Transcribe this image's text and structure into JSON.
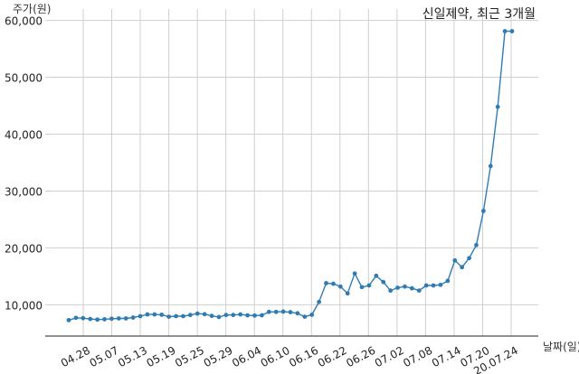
{
  "chart_data": {
    "type": "line",
    "title": "신일제약, 최근 3개월",
    "ylabel": "주가(원)",
    "xlabel": "날짜(일)",
    "ylim": [
      4500,
      62000
    ],
    "yticks": [
      10000,
      20000,
      30000,
      40000,
      50000,
      60000
    ],
    "ytick_labels": [
      "10,000",
      "20,000",
      "30,000",
      "40,000",
      "50,000",
      "60,000"
    ],
    "xtick_labels": [
      "04.28",
      "05.07",
      "05.13",
      "05.19",
      "05.25",
      "05.29",
      "06.04",
      "06.10",
      "06.16",
      "06.22",
      "06.26",
      "07.02",
      "07.08",
      "07.14",
      "07.20",
      "20.07.24"
    ],
    "grid": true,
    "line_color": "#2f7cb5",
    "series": [
      {
        "values": [
          7300,
          7700,
          7650,
          7500,
          7400,
          7450,
          7550,
          7600,
          7600,
          7750,
          8000,
          8300,
          8300,
          8250,
          7900,
          8000,
          8000,
          8200,
          8450,
          8350,
          8050,
          7850,
          8200,
          8200,
          8300,
          8150,
          8100,
          8150,
          8750,
          8750,
          8800,
          8700,
          8500,
          7900,
          8250,
          10500,
          13800,
          13700,
          13200,
          12000,
          15500,
          13100,
          13400,
          15100,
          14000,
          12500,
          13000,
          13200,
          12900,
          12500,
          13400,
          13400,
          13500,
          14200,
          17800,
          16600,
          18200,
          20500,
          26500,
          34400,
          44800,
          58100,
          58100
        ]
      }
    ]
  }
}
